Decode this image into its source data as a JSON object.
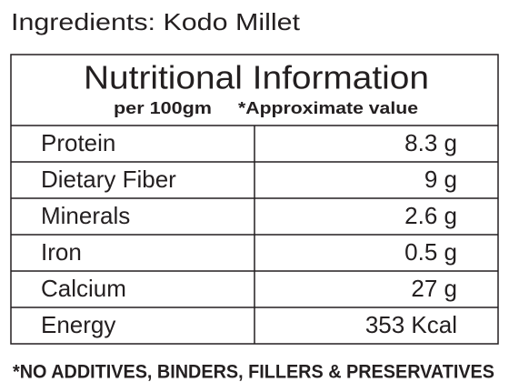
{
  "header": {
    "title": "Ingredients: Kodo Millet"
  },
  "table": {
    "title": "Nutritional Information",
    "serving": "per 100gm",
    "note": "*Approximate value",
    "rows": [
      [
        "Protein",
        "8.3 g"
      ],
      [
        "Dietary Fiber",
        "9 g"
      ],
      [
        "Minerals",
        "2.6 g"
      ],
      [
        "Iron",
        "0.5 g"
      ],
      [
        "Calcium",
        "27 g"
      ],
      [
        "Energy",
        "353 Kcal"
      ]
    ]
  },
  "footer": {
    "text": "*NO ADDITIVES, BINDERS, FILLERS & PRESERVATIVES"
  }
}
